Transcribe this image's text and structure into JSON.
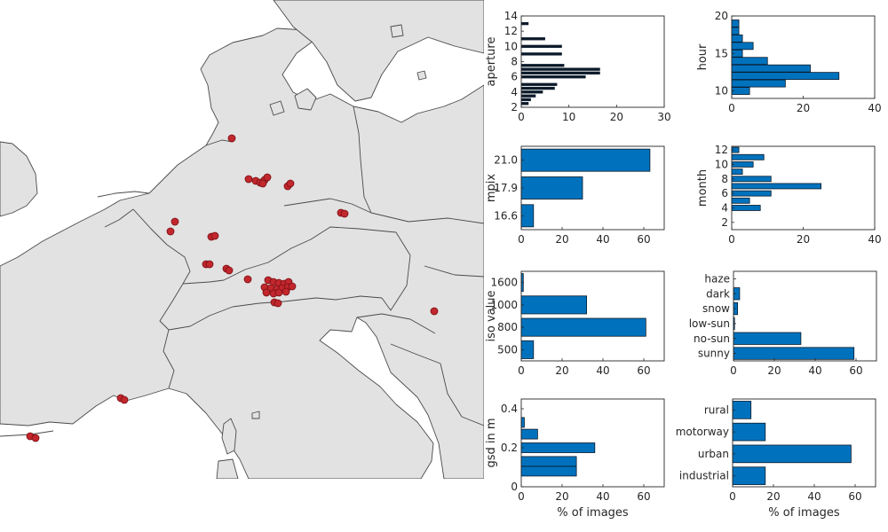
{
  "colors": {
    "bar": "#0072BD",
    "bar_edge": "#0b1a2a",
    "marker": "#c1272d",
    "land": "#e2e2e2",
    "border": "#4a4a4a",
    "sea": "#ffffff"
  },
  "map": {
    "marker_count": 59
  },
  "chart_data": [
    {
      "id": "aperture",
      "type": "bar",
      "orientation": "horizontal",
      "ylabel": "aperture",
      "xlabel": "",
      "ylim": [
        2,
        14
      ],
      "yticks": [
        "2",
        "4",
        "6",
        "8",
        "10",
        "12",
        "14"
      ],
      "xlim": [
        0,
        30
      ],
      "xticks": [
        "0",
        "10",
        "20",
        "30"
      ],
      "thin_bars": true,
      "y": [
        2.5,
        3,
        3.5,
        4,
        4.5,
        5,
        6,
        6.5,
        7,
        7.5,
        9,
        10,
        11,
        13
      ],
      "values": [
        1.5,
        2,
        3,
        4.5,
        7,
        7.5,
        13.5,
        16.5,
        16.5,
        9,
        8.5,
        8.5,
        5,
        1.5
      ]
    },
    {
      "id": "hour",
      "type": "bar",
      "orientation": "horizontal",
      "ylabel": "hour",
      "xlabel": "",
      "ylim": [
        9,
        20
      ],
      "yticks": [
        "10",
        "15",
        "20"
      ],
      "xlim": [
        0,
        40
      ],
      "xticks": [
        "0",
        "20",
        "40"
      ],
      "y": [
        10,
        11,
        12,
        13,
        14,
        15,
        16,
        17,
        18,
        19
      ],
      "values": [
        5,
        15,
        30,
        22,
        10,
        3,
        6,
        3,
        2,
        2
      ]
    },
    {
      "id": "mpix",
      "type": "bar",
      "orientation": "horizontal",
      "ylabel": "mpix",
      "xlabel": "",
      "categories": [
        "16.6",
        "17.9",
        "21.0"
      ],
      "values": [
        6,
        30,
        63
      ],
      "xlim": [
        0,
        70
      ],
      "xticks": [
        "0",
        "20",
        "40",
        "60"
      ]
    },
    {
      "id": "month",
      "type": "bar",
      "orientation": "horizontal",
      "ylabel": "month",
      "xlabel": "",
      "ylim": [
        1,
        12.5
      ],
      "yticks": [
        "2",
        "4",
        "6",
        "8",
        "10",
        "12"
      ],
      "xlim": [
        0,
        40
      ],
      "xticks": [
        "0",
        "20",
        "40"
      ],
      "y": [
        4,
        5,
        6,
        7,
        8,
        9,
        10,
        11,
        12
      ],
      "values": [
        8,
        5,
        11,
        25,
        11,
        3,
        6,
        9,
        2
      ]
    },
    {
      "id": "iso",
      "type": "bar",
      "orientation": "horizontal",
      "ylabel": "iso value",
      "xlabel": "",
      "categories": [
        "500",
        "800",
        "1000",
        "1600"
      ],
      "values": [
        6,
        61,
        32,
        1
      ],
      "xlim": [
        0,
        70
      ],
      "xticks": [
        "0",
        "20",
        "40",
        "60"
      ]
    },
    {
      "id": "weather",
      "type": "bar",
      "orientation": "horizontal",
      "ylabel": "",
      "xlabel": "",
      "categories": [
        "sunny",
        "no-sun",
        "low-sun",
        "snow",
        "dark",
        "haze"
      ],
      "values": [
        59,
        33,
        0.5,
        2,
        3,
        0
      ],
      "xlim": [
        0,
        70
      ],
      "xticks": [
        "0",
        "20",
        "40",
        "60"
      ]
    },
    {
      "id": "gsd",
      "type": "bar",
      "orientation": "horizontal",
      "ylabel": "gsd in m",
      "xlabel": "% of images",
      "ylim": [
        0,
        0.45
      ],
      "yticks": [
        "0",
        "0.2",
        "0.4"
      ],
      "xlim": [
        0,
        70
      ],
      "xticks": [
        "0",
        "20",
        "40",
        "60"
      ],
      "y": [
        0.08,
        0.13,
        0.2,
        0.27,
        0.33
      ],
      "values": [
        27,
        27,
        36,
        8,
        1.5
      ]
    },
    {
      "id": "landuse",
      "type": "bar",
      "orientation": "horizontal",
      "ylabel": "",
      "xlabel": "% of images",
      "categories": [
        "industrial",
        "urban",
        "motorway",
        "rural"
      ],
      "values": [
        16,
        58,
        16,
        9
      ],
      "xlim": [
        0,
        70
      ],
      "xticks": [
        "0",
        "20",
        "40",
        "60"
      ]
    }
  ]
}
